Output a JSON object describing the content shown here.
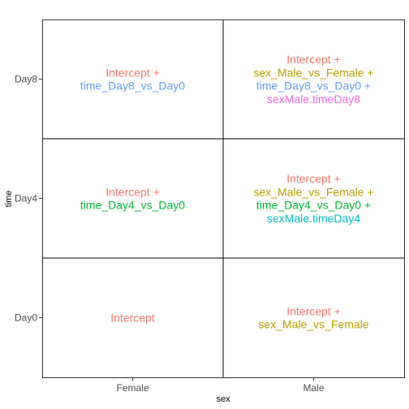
{
  "chart_data": {
    "type": "table",
    "xlabel": "sex",
    "ylabel": "time",
    "x_categories": [
      "Female",
      "Male"
    ],
    "y_categories": [
      "Day0",
      "Day4",
      "Day8"
    ],
    "grid": false,
    "colors": {
      "Intercept": "#F8766D",
      "sex_Male_vs_Female": "#B79F00",
      "time_Day4_vs_Day0": "#00BA38",
      "time_Day8_vs_Day0": "#619CFF",
      "sexMale.timeDay4": "#00BFC4",
      "sexMale.timeDay8": "#F564E3"
    },
    "cells": [
      {
        "sex": "Female",
        "time": "Day8",
        "lines": [
          {
            "text": "Intercept +",
            "term": "Intercept"
          },
          {
            "text": "time_Day8_vs_Day0",
            "term": "time_Day8_vs_Day0"
          }
        ]
      },
      {
        "sex": "Male",
        "time": "Day8",
        "lines": [
          {
            "text": "Intercept +",
            "term": "Intercept"
          },
          {
            "text": "sex_Male_vs_Female +",
            "term": "sex_Male_vs_Female"
          },
          {
            "text": "time_Day8_vs_Day0 +",
            "term": "time_Day8_vs_Day0"
          },
          {
            "text": "sexMale.timeDay8",
            "term": "sexMale.timeDay8"
          }
        ]
      },
      {
        "sex": "Female",
        "time": "Day4",
        "lines": [
          {
            "text": "Intercept +",
            "term": "Intercept"
          },
          {
            "text": "time_Day4_vs_Day0",
            "term": "time_Day4_vs_Day0"
          }
        ]
      },
      {
        "sex": "Male",
        "time": "Day4",
        "lines": [
          {
            "text": "Intercept +",
            "term": "Intercept"
          },
          {
            "text": "sex_Male_vs_Female +",
            "term": "sex_Male_vs_Female"
          },
          {
            "text": "time_Day4_vs_Day0 +",
            "term": "time_Day4_vs_Day0"
          },
          {
            "text": "sexMale.timeDay4",
            "term": "sexMale.timeDay4"
          }
        ]
      },
      {
        "sex": "Female",
        "time": "Day0",
        "lines": [
          {
            "text": "Intercept",
            "term": "Intercept"
          }
        ]
      },
      {
        "sex": "Male",
        "time": "Day0",
        "lines": [
          {
            "text": "Intercept +",
            "term": "Intercept"
          },
          {
            "text": "sex_Male_vs_Female",
            "term": "sex_Male_vs_Female"
          }
        ]
      }
    ]
  }
}
